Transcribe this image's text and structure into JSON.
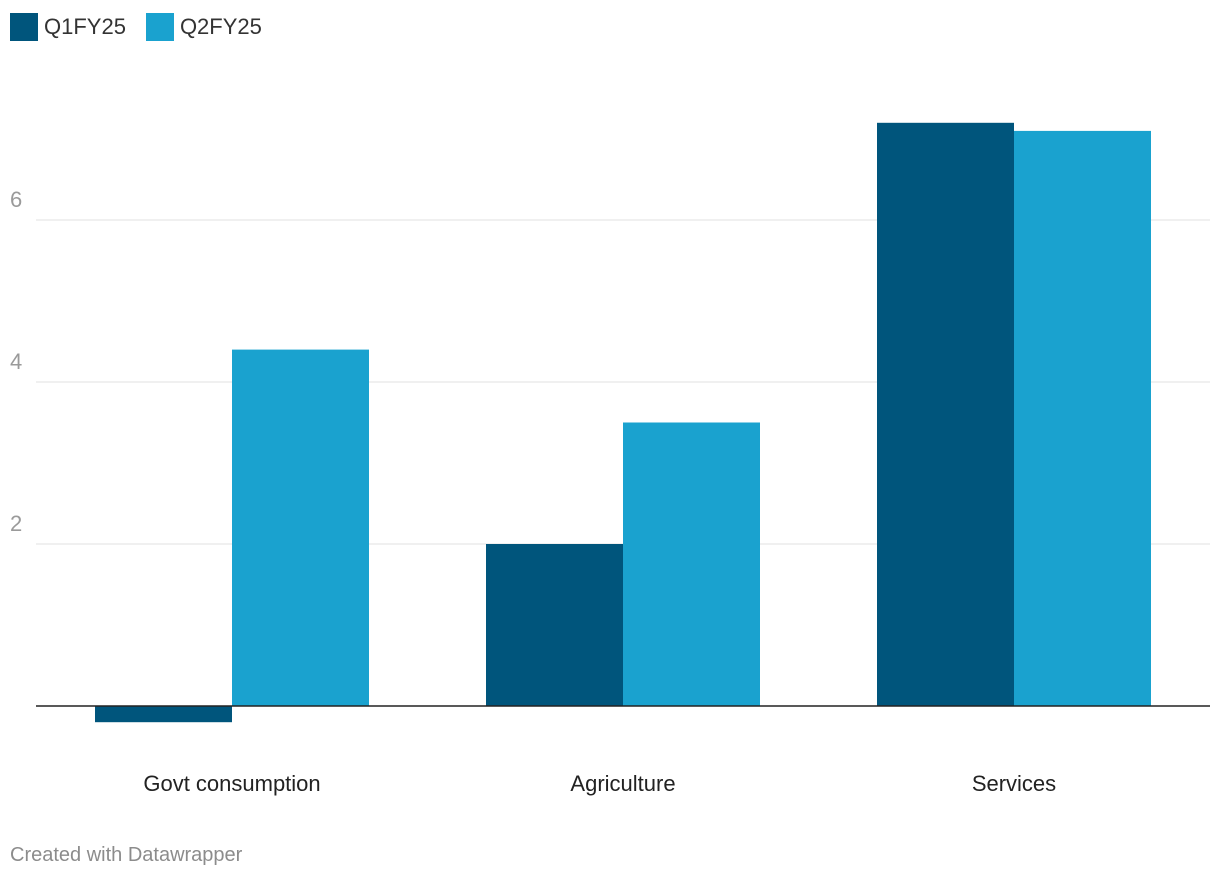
{
  "chart_data": {
    "type": "bar",
    "categories": [
      "Govt consumption",
      "Agriculture",
      "Services"
    ],
    "series": [
      {
        "name": "Q1FY25",
        "values": [
          -0.2,
          2.0,
          7.2
        ],
        "color": "#00557c"
      },
      {
        "name": "Q2FY25",
        "values": [
          4.4,
          3.5,
          7.1
        ],
        "color": "#1aa2cf"
      }
    ],
    "title": "",
    "xlabel": "",
    "ylabel": "",
    "ylim": [
      -0.3,
      7.8
    ],
    "yticks": [
      2,
      4,
      6
    ],
    "ytick_labels": [
      "2",
      "4",
      "6"
    ],
    "grid": true,
    "legend": "top-left"
  },
  "footer": {
    "credit": "Created with Datawrapper"
  }
}
